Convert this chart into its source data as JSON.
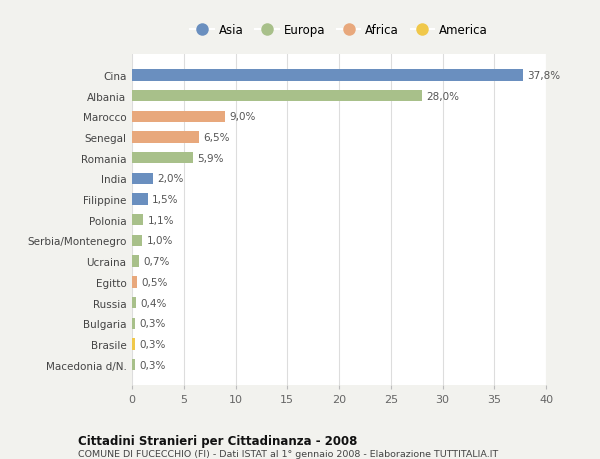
{
  "countries": [
    "Cina",
    "Albania",
    "Marocco",
    "Senegal",
    "Romania",
    "India",
    "Filippine",
    "Polonia",
    "Serbia/Montenegro",
    "Ucraina",
    "Egitto",
    "Russia",
    "Bulgaria",
    "Brasile",
    "Macedonia d/N."
  ],
  "values": [
    37.8,
    28.0,
    9.0,
    6.5,
    5.9,
    2.0,
    1.5,
    1.1,
    1.0,
    0.7,
    0.5,
    0.4,
    0.3,
    0.3,
    0.3
  ],
  "labels": [
    "37,8%",
    "28,0%",
    "9,0%",
    "6,5%",
    "5,9%",
    "2,0%",
    "1,5%",
    "1,1%",
    "1,0%",
    "0,7%",
    "0,5%",
    "0,4%",
    "0,3%",
    "0,3%",
    "0,3%"
  ],
  "continents": [
    "Asia",
    "Europa",
    "Africa",
    "Africa",
    "Europa",
    "Asia",
    "Asia",
    "Europa",
    "Europa",
    "Europa",
    "Africa",
    "Europa",
    "Europa",
    "America",
    "Europa"
  ],
  "colors": {
    "Asia": "#6A8FBF",
    "Europa": "#A8C08A",
    "Africa": "#E8A87C",
    "America": "#F0C84A"
  },
  "legend_order": [
    "Asia",
    "Europa",
    "Africa",
    "America"
  ],
  "title": "Cittadini Stranieri per Cittadinanza - 2008",
  "subtitle": "COMUNE DI FUCECCHIO (FI) - Dati ISTAT al 1° gennaio 2008 - Elaborazione TUTTITALIA.IT",
  "xlim": [
    0,
    40
  ],
  "xticks": [
    0,
    5,
    10,
    15,
    20,
    25,
    30,
    35,
    40
  ],
  "background_color": "#F2F2EE",
  "plot_background": "#FFFFFF",
  "grid_color": "#DDDDDD",
  "bar_height": 0.55
}
